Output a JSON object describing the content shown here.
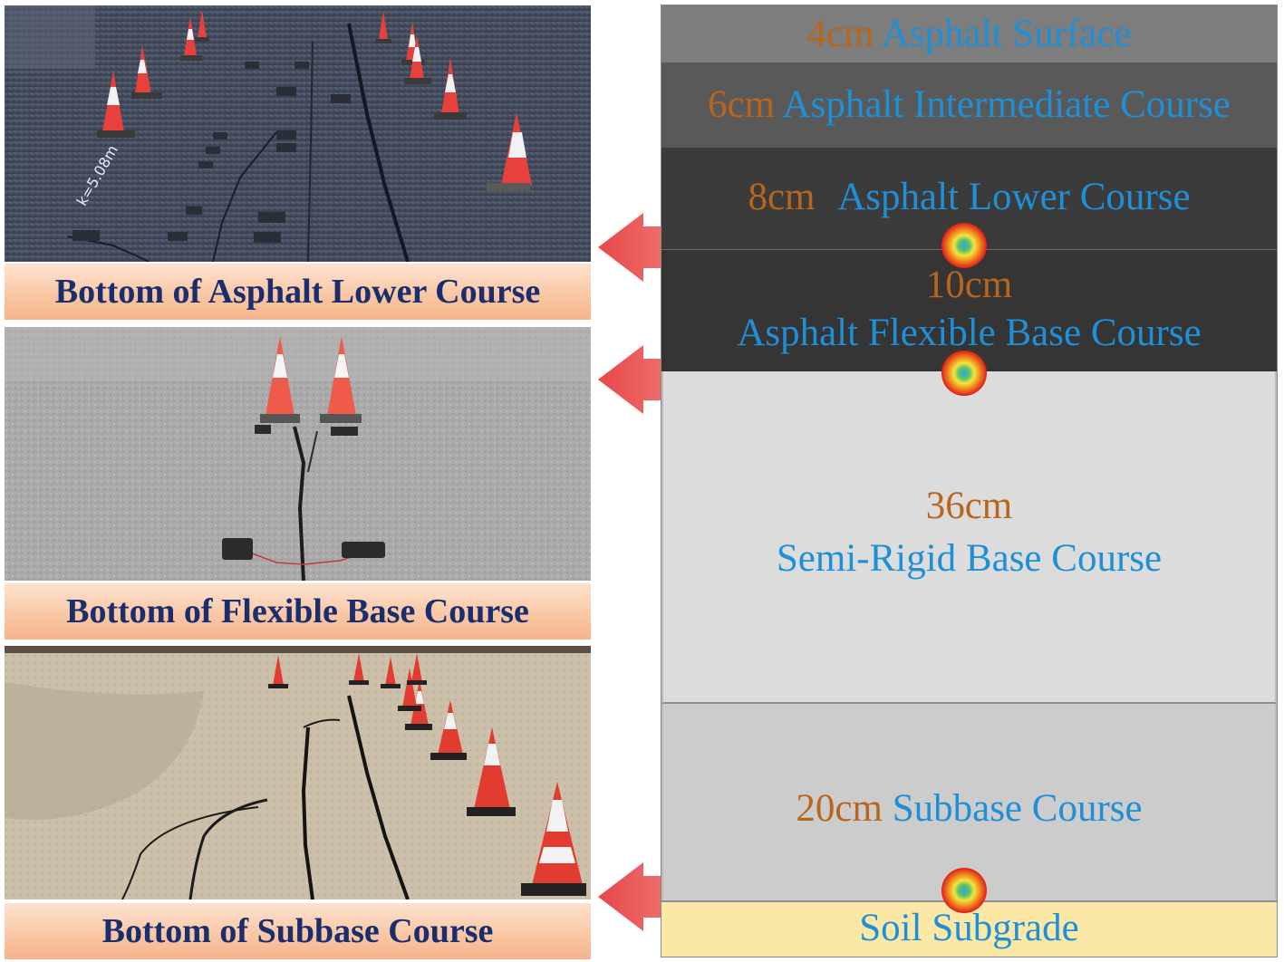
{
  "captions": {
    "top": "Bottom of Asphalt  Lower  Course",
    "middle": "Bottom of Flexible Base Course",
    "bottom": "Bottom of Subbase Course"
  },
  "layers": {
    "surface": {
      "thickness": "4cm",
      "name": "Asphalt Surface",
      "color": "#7d7d7d"
    },
    "intermediate": {
      "thickness": "6cm",
      "name": "Asphalt Intermediate Course",
      "color": "#595959"
    },
    "lower": {
      "thickness": "8cm",
      "name": "Asphalt Lower  Course",
      "color": "#3b3b3b"
    },
    "flexible": {
      "thickness": "10cm",
      "name": "Asphalt Flexible Base Course",
      "color": "#353535"
    },
    "semirigid": {
      "thickness": "36cm",
      "name": "Semi-Rigid Base Course",
      "color": "#dcdcdc"
    },
    "subbase": {
      "thickness": "20cm",
      "name": "Subbase Course",
      "color": "#cccccc"
    },
    "subgrade": {
      "name": "Soil Subgrade",
      "color": "#fbe8a6"
    }
  },
  "colors": {
    "thickness_text": "#b8651e",
    "layer_name_text": "#1f8fd6",
    "caption_text": "#1a2e6e",
    "arrow": "#e8474a"
  },
  "icons": [
    "traffic-cone-icon",
    "sensor-marker-icon",
    "left-arrow-icon"
  ]
}
